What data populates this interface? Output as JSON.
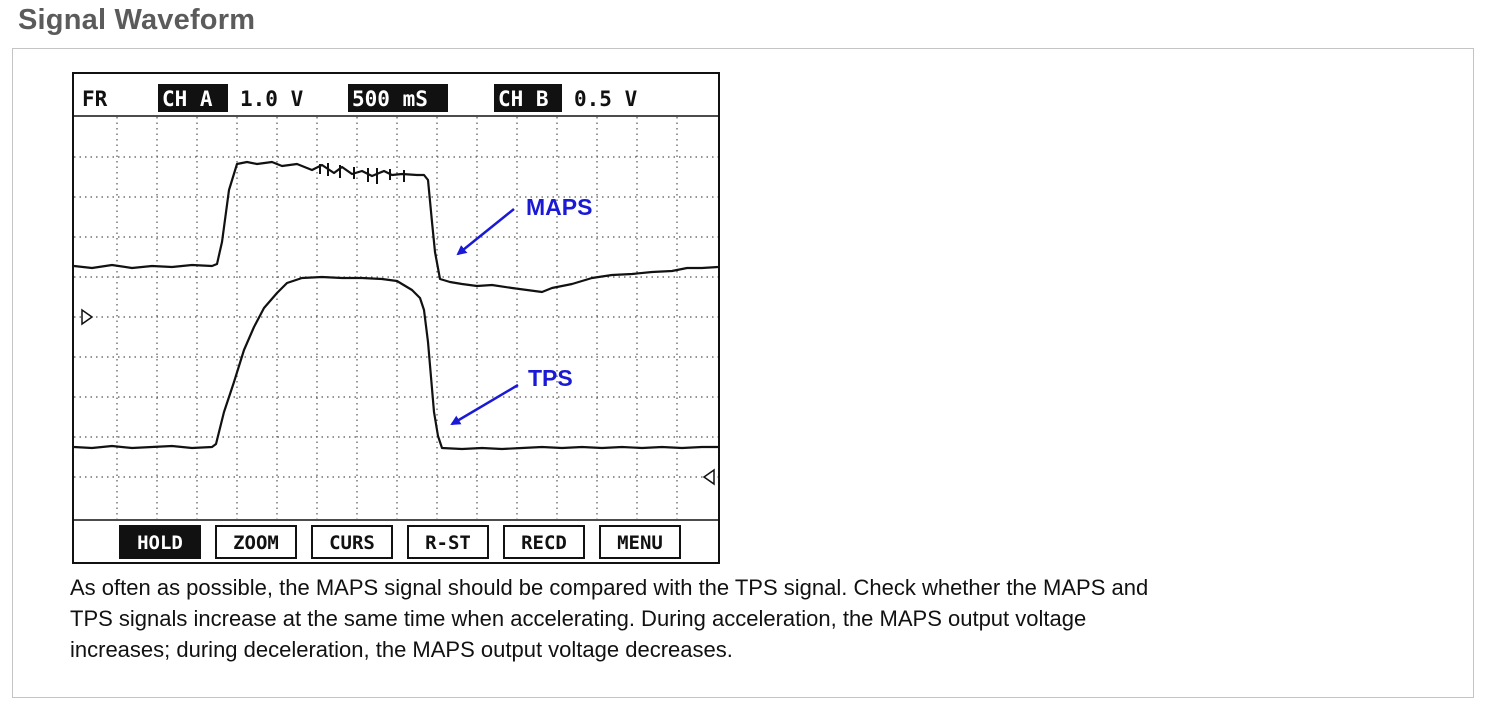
{
  "header": {
    "title": "Signal Waveform"
  },
  "scope": {
    "top_bar": {
      "mode": "FR",
      "ch_a_label": "CH A",
      "ch_a_scale": "1.0 V",
      "time_base": "500 mS",
      "ch_b_label": "CH B",
      "ch_b_scale": "0.5 V"
    },
    "annotations": {
      "maps": "MAPS",
      "tps": "TPS"
    },
    "annotation_color": "#1a1ad6",
    "buttons": [
      {
        "label": "HOLD",
        "active": true
      },
      {
        "label": "ZOOM",
        "active": false
      },
      {
        "label": "CURS",
        "active": false
      },
      {
        "label": "R-ST",
        "active": false
      },
      {
        "label": "RECD",
        "active": false
      },
      {
        "label": "MENU",
        "active": false
      }
    ]
  },
  "caption": {
    "line1": "As often as possible, the MAPS signal should be compared with the TPS signal. Check whether the MAPS and",
    "line2": "TPS signals increase at the same time when accelerating. During acceleration, the MAPS output voltage",
    "line3": "increases; during deceleration, the MAPS output voltage decreases."
  }
}
